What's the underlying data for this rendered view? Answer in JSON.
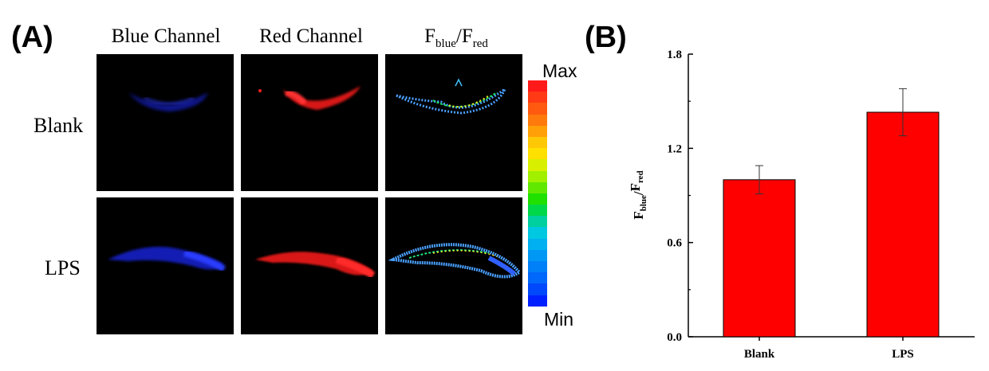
{
  "panels": {
    "a_label": "(A)",
    "b_label": "(B)"
  },
  "microscopy": {
    "columns": [
      "Blue Channel",
      "Red Channel"
    ],
    "ratio_column": {
      "F": "F",
      "blue": "blue",
      "slash": "/",
      "red": "red"
    },
    "rows": [
      "Blank",
      "LPS"
    ]
  },
  "colorbar": {
    "max_label": "Max",
    "min_label": "Min",
    "colors": [
      "#ff1a1a",
      "#ff3a14",
      "#ff5a10",
      "#ff7a0c",
      "#ffa008",
      "#ffc806",
      "#ffe000",
      "#d8f000",
      "#a0f000",
      "#60e800",
      "#20e000",
      "#00d84a",
      "#00d0a0",
      "#00c8e0",
      "#00b0f0",
      "#0098f4",
      "#0080f8",
      "#0068fa",
      "#0048fc",
      "#0020ff"
    ]
  },
  "colors": {
    "bar": "#ff0000",
    "axis": "#000000",
    "blue_signal": "#1a2bff",
    "red_signal": "#ff1a1a"
  },
  "chart_data": {
    "type": "bar",
    "categories": [
      "Blank",
      "LPS"
    ],
    "values": [
      1.0,
      1.43
    ],
    "errors": [
      0.09,
      0.15
    ],
    "ylabel": "Fblue/Fred",
    "ylabel_parts": {
      "F1": "F",
      "blue": "blue",
      "slash": "/",
      "F2": "F",
      "red": "red"
    },
    "ylim": [
      0.0,
      1.8
    ],
    "yticks": [
      "0.0",
      "0.6",
      "1.2",
      "1.8"
    ],
    "ytick_values": [
      0.0,
      0.6,
      1.2,
      1.8
    ],
    "legend": "none"
  }
}
